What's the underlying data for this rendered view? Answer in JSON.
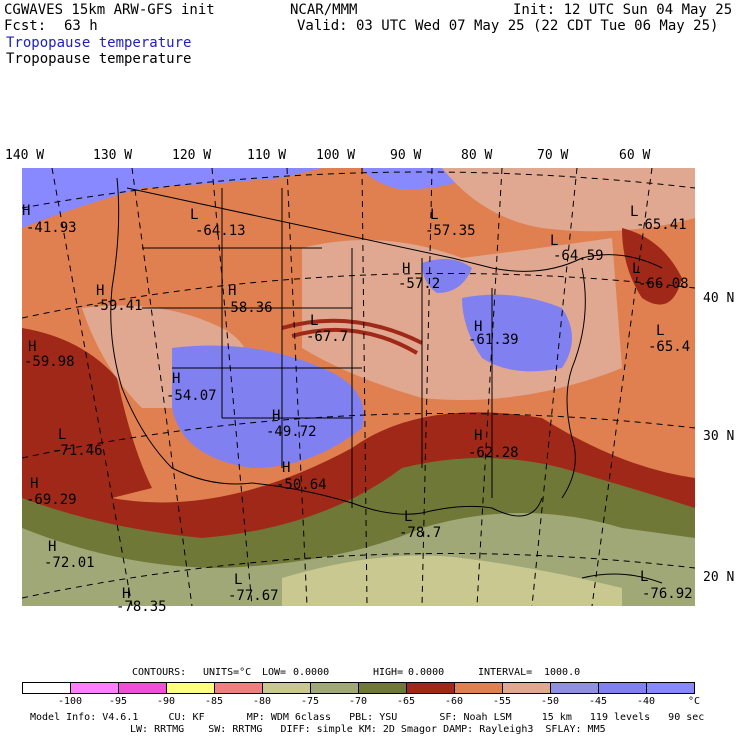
{
  "header": {
    "model": "CGWAVES 15km ARW-GFS init",
    "org": "NCAR/MMM",
    "init": "Init: 12 UTC Sun 04 May 25",
    "fcst_label": "Fcst:",
    "fcst_value": "63 h",
    "valid": "Valid: 03 UTC Wed 07 May 25 (22 CDT Tue 06 May 25)",
    "field_blue": "Tropopause temperature",
    "field_black": "Tropopause temperature"
  },
  "longitudes": [
    "140 W",
    "130 W",
    "120 W",
    "110 W",
    "100 W",
    "90 W",
    "80 W",
    "70 W",
    "60 W"
  ],
  "latitudes": [
    "40 N",
    "30 N",
    "20 N"
  ],
  "centers": [
    {
      "type": "H",
      "value": "-41.93"
    },
    {
      "type": "L",
      "value": "-64.13"
    },
    {
      "type": "L",
      "value": "-57.35"
    },
    {
      "type": "L",
      "value": "-65.41"
    },
    {
      "type": "L",
      "value": "-64.59"
    },
    {
      "type": "L",
      "value": "-66.08"
    },
    {
      "type": "H",
      "value": "-59.41"
    },
    {
      "type": "H",
      "value": "-58.36"
    },
    {
      "type": "H",
      "value": "-57.2"
    },
    {
      "type": "L",
      "value": "-67.7"
    },
    {
      "type": "H",
      "value": "-61.39"
    },
    {
      "type": "L",
      "value": "-65.4"
    },
    {
      "type": "H",
      "value": "-59.98"
    },
    {
      "type": "H",
      "value": "-54.07"
    },
    {
      "type": "H",
      "value": "-49.72"
    },
    {
      "type": "L",
      "value": "-71.46"
    },
    {
      "type": "H",
      "value": "-62.28"
    },
    {
      "type": "H",
      "value": "-50.64"
    },
    {
      "type": "H",
      "value": "-69.29"
    },
    {
      "type": "L",
      "value": "-78.7"
    },
    {
      "type": "H",
      "value": "-72.01"
    },
    {
      "type": "L",
      "value": "-77.67"
    },
    {
      "type": "H",
      "value": "-78.35"
    },
    {
      "type": "L",
      "value": "-76.92"
    }
  ],
  "contours": {
    "label": "CONTOURS:",
    "units": "UNITS=°C",
    "low": "LOW=",
    "low_value": "0.0000",
    "high": "HIGH=",
    "high_value": "0.0000",
    "interval": "INTERVAL=",
    "interval_value": "1000.0"
  },
  "colorbar": {
    "colors": [
      "#ffffff",
      "#ff80ff",
      "#f050d8",
      "#ffff80",
      "#f08080",
      "#c8c890",
      "#a0a878",
      "#707838",
      "#a02818",
      "#e08050",
      "#e0a890",
      "#9090e0",
      "#8080f0",
      "#8888ff"
    ],
    "ticks": [
      "-100",
      "-95",
      "-90",
      "-85",
      "-80",
      "-75",
      "-70",
      "-65",
      "-60",
      "-55",
      "-50",
      "-45",
      "-40",
      "°C"
    ]
  },
  "footer": {
    "line1": "Model Info: V4.6.1     CU: KF       MP: WDM 6class   PBL: YSU       SF: Noah LSM     15 km   119 levels   90 sec",
    "line2": "LW: RRTMG    SW: RRTMG   DIFF: simple KM: 2D Smagor DAMP: Rayleigh3  SFLAY: MM5"
  }
}
